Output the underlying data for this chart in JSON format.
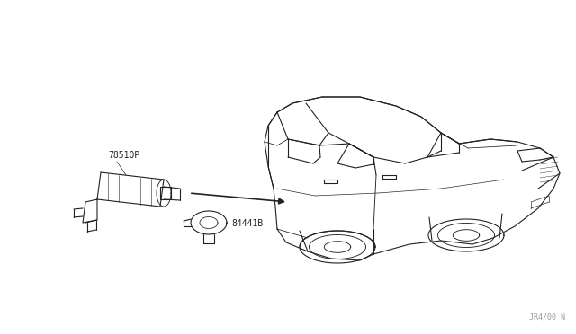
{
  "background_color": "#ffffff",
  "fig_width": 6.4,
  "fig_height": 3.72,
  "dpi": 100,
  "watermark_text": "JR4/00 N",
  "watermark_color": "#999999",
  "part1_label": "78510P",
  "part2_label": "84441B",
  "line_color": "#222222",
  "line_width": 0.8
}
